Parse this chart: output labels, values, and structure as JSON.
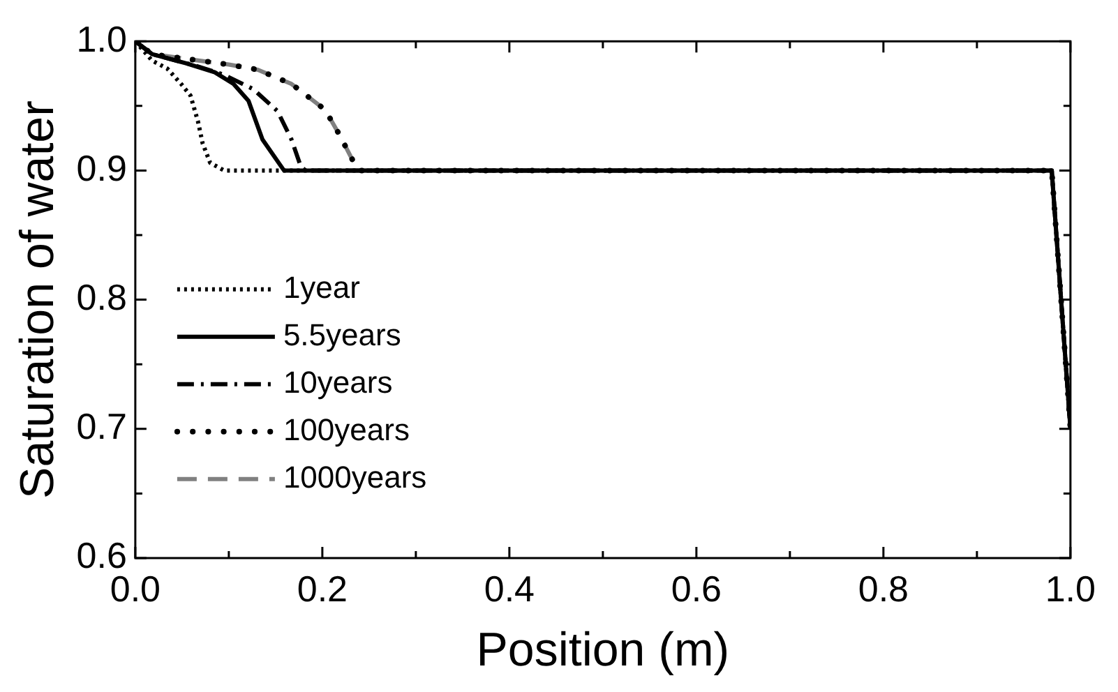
{
  "chart_data": {
    "type": "line",
    "xlabel": "Position (m)",
    "ylabel": "Saturation of water",
    "xlim": [
      0,
      1
    ],
    "ylim": [
      0.6,
      1.0
    ],
    "xticks": [
      {
        "value": 0,
        "label": "0.0"
      },
      {
        "value": 0.1,
        "label": null
      },
      {
        "value": 0.2,
        "label": "0.2"
      },
      {
        "value": 0.3,
        "label": null
      },
      {
        "value": 0.4,
        "label": "0.4"
      },
      {
        "value": 0.5,
        "label": null
      },
      {
        "value": 0.6,
        "label": "0.6"
      },
      {
        "value": 0.7,
        "label": null
      },
      {
        "value": 0.8,
        "label": "0.8"
      },
      {
        "value": 0.9,
        "label": null
      },
      {
        "value": 1.0,
        "label": "1.0"
      }
    ],
    "yticks": [
      {
        "value": 0.6,
        "label": "0.6"
      },
      {
        "value": 0.65,
        "label": null
      },
      {
        "value": 0.7,
        "label": "0.7"
      },
      {
        "value": 0.75,
        "label": null
      },
      {
        "value": 0.8,
        "label": "0.8"
      },
      {
        "value": 0.85,
        "label": null
      },
      {
        "value": 0.9,
        "label": "0.9"
      },
      {
        "value": 0.95,
        "label": null
      },
      {
        "value": 1.0,
        "label": "1.0"
      }
    ],
    "legend": "left",
    "marker": "none",
    "grid": false,
    "series": [
      {
        "name": "1year",
        "color": "#000000",
        "line_style": "dotted",
        "x": [
          0,
          0.018,
          0.034,
          0.049,
          0.059,
          0.067,
          0.072,
          0.08,
          0.095,
          0.98,
          1.0
        ],
        "values": [
          1.0,
          0.985,
          0.979,
          0.967,
          0.958,
          0.938,
          0.921,
          0.906,
          0.9,
          0.9,
          0.7
        ]
      },
      {
        "name": "5.5years",
        "color": "#000000",
        "line_style": "solid",
        "x": [
          0,
          0.018,
          0.054,
          0.085,
          0.105,
          0.121,
          0.136,
          0.159,
          0.98,
          1.0
        ],
        "values": [
          1.0,
          0.99,
          0.983,
          0.976,
          0.967,
          0.954,
          0.924,
          0.9,
          0.9,
          0.7
        ]
      },
      {
        "name": "10years",
        "color": "#000000",
        "line_style": "dashdot",
        "x": [
          0,
          0.018,
          0.065,
          0.095,
          0.126,
          0.152,
          0.167,
          0.177,
          0.182,
          0.98,
          1.0
        ],
        "values": [
          1.0,
          0.99,
          0.981,
          0.974,
          0.963,
          0.946,
          0.924,
          0.903,
          0.9,
          0.9,
          0.7
        ]
      },
      {
        "name": "1000years",
        "color": "#808080",
        "line_style": "dashed",
        "x": [
          0,
          0.018,
          0.1,
          0.131,
          0.167,
          0.203,
          0.218,
          0.236,
          0.241,
          0.98,
          1.0
        ],
        "values": [
          1.0,
          0.99,
          0.982,
          0.978,
          0.967,
          0.947,
          0.928,
          0.903,
          0.9,
          0.9,
          0.7
        ]
      },
      {
        "name": "100years",
        "color": "#000000",
        "line_style": "sparse_dotted",
        "x": [
          0,
          0.018,
          0.1,
          0.131,
          0.167,
          0.203,
          0.218,
          0.236,
          0.241,
          0.98,
          1.0
        ],
        "values": [
          1.0,
          0.99,
          0.982,
          0.978,
          0.967,
          0.947,
          0.928,
          0.903,
          0.9,
          0.9,
          0.7
        ]
      }
    ]
  }
}
